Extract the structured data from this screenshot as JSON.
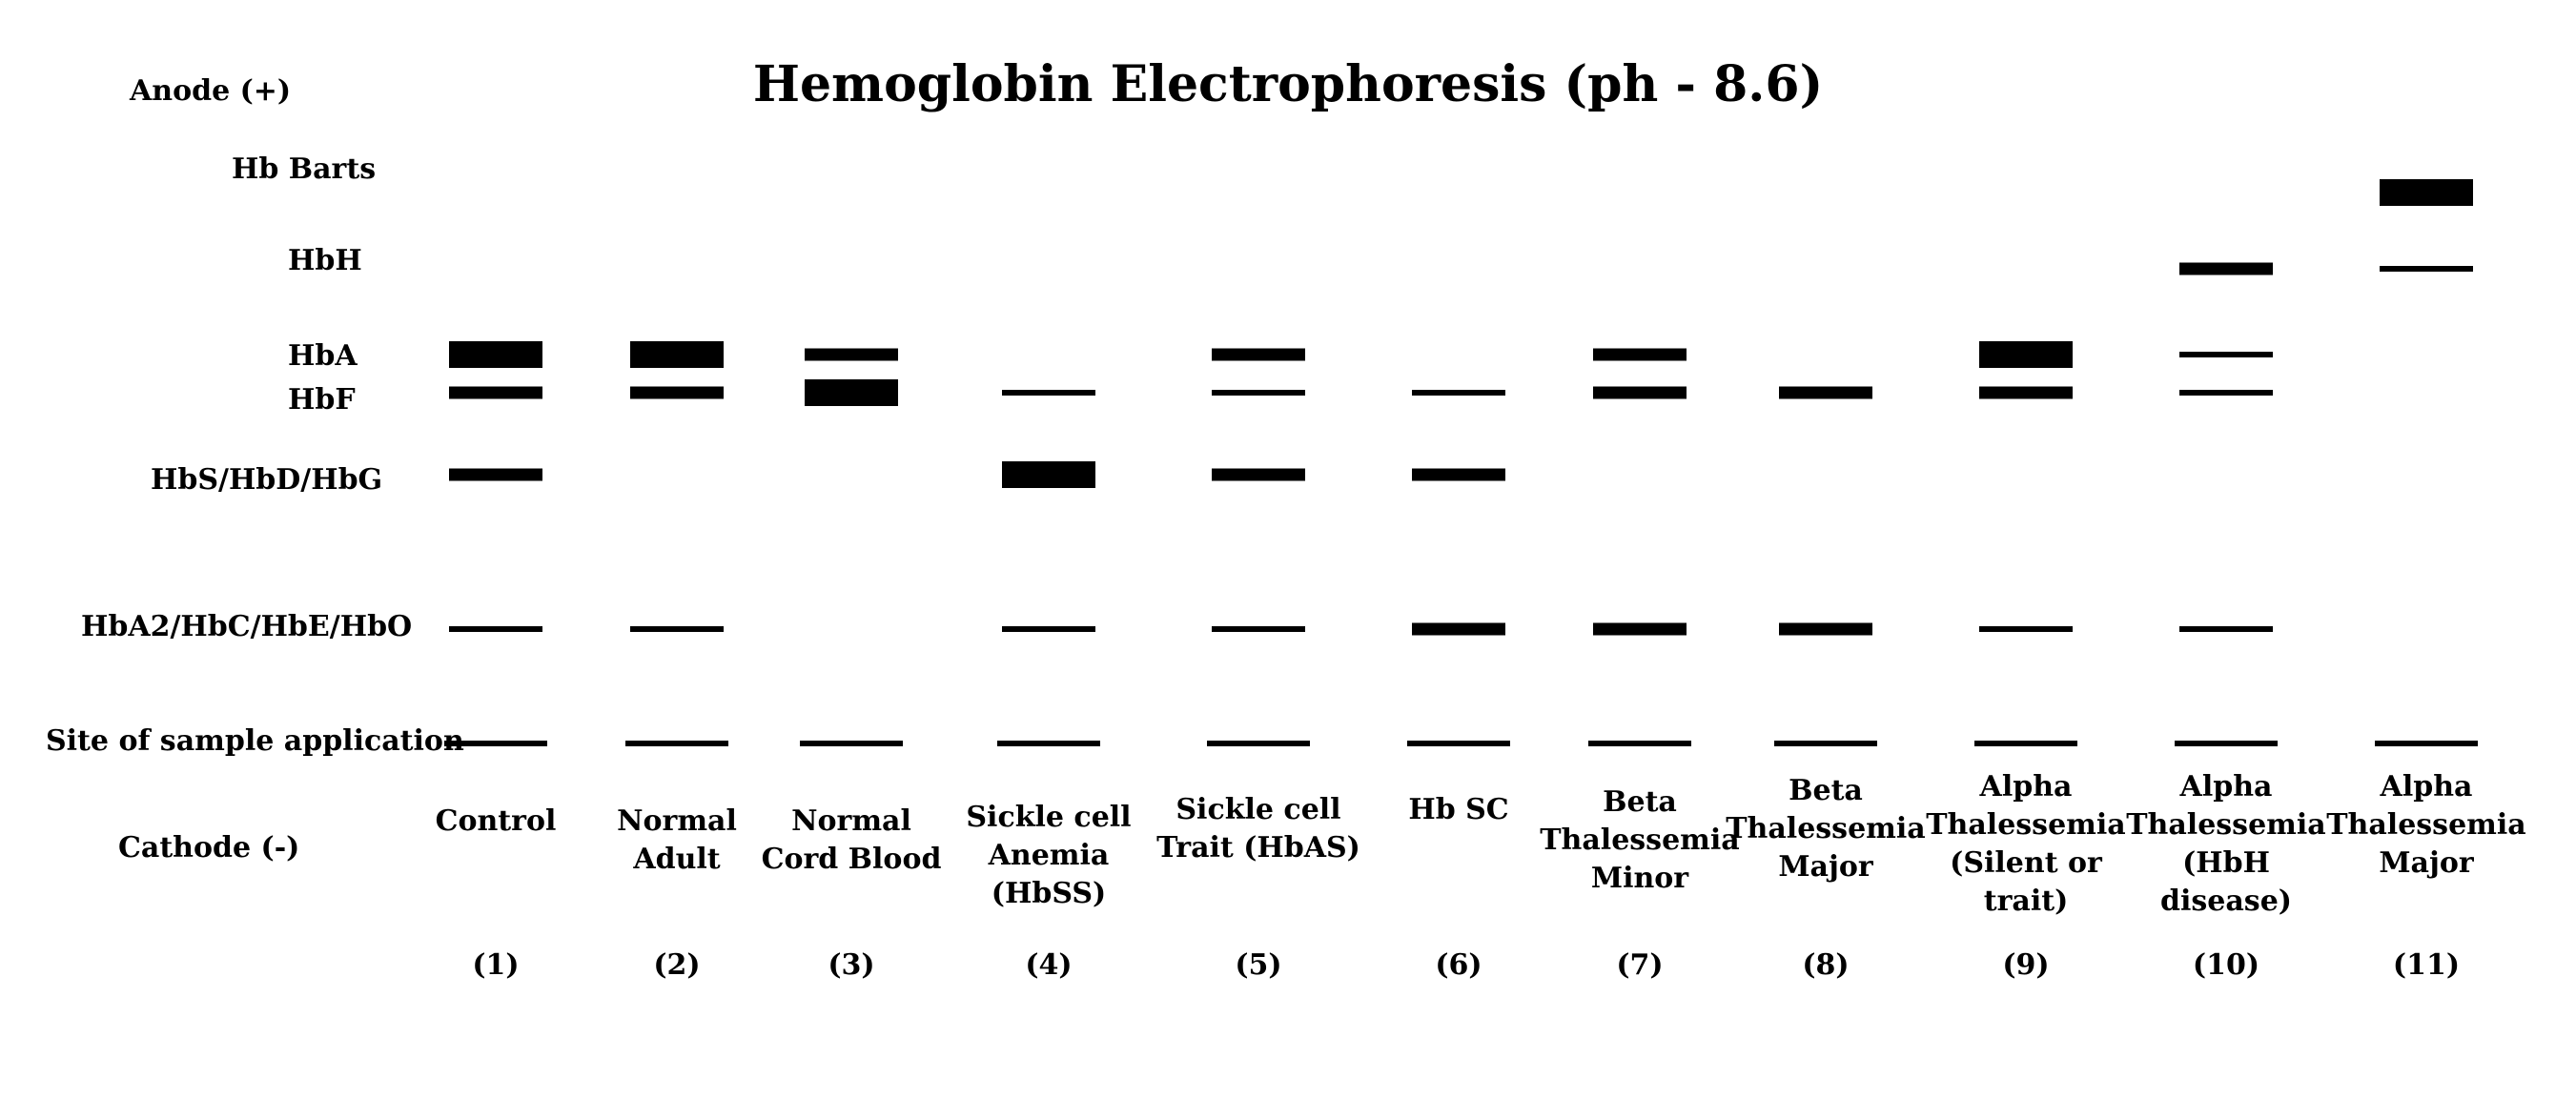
{
  "title": "Hemoglobin Electrophoresis (ph - 8.6)",
  "anode_label": "Anode (+)",
  "cathode_label": "Cathode (-)",
  "row_labels": {
    "hb_barts": "Hb Barts",
    "hbh": "HbH",
    "hba": "HbA",
    "hbf": "HbF",
    "hbs": "HbS/HbD/HbG",
    "hba2": "HbA2/HbC/HbE/HbO",
    "origin": "Site of sample application"
  },
  "lanes": [
    {
      "name_lines": [
        "Control"
      ],
      "number": "(1)",
      "bands": [
        {
          "row": "hba",
          "weight": "thick"
        },
        {
          "row": "hbf",
          "weight": "medium"
        },
        {
          "row": "hbs",
          "weight": "medium"
        },
        {
          "row": "hba2",
          "weight": "thin"
        },
        {
          "row": "origin",
          "weight": "thin"
        }
      ]
    },
    {
      "name_lines": [
        "Normal",
        "Adult"
      ],
      "number": "(2)",
      "bands": [
        {
          "row": "hba",
          "weight": "thick"
        },
        {
          "row": "hbf",
          "weight": "medium"
        },
        {
          "row": "hba2",
          "weight": "thin"
        },
        {
          "row": "origin",
          "weight": "thin"
        }
      ]
    },
    {
      "name_lines": [
        "Normal",
        "Cord Blood"
      ],
      "number": "(3)",
      "bands": [
        {
          "row": "hba",
          "weight": "medium"
        },
        {
          "row": "hbf",
          "weight": "thick"
        },
        {
          "row": "origin",
          "weight": "thin"
        }
      ]
    },
    {
      "name_lines": [
        "Sickle cell",
        "Anemia (HbSS)"
      ],
      "number": "(4)",
      "bands": [
        {
          "row": "hbf",
          "weight": "thin"
        },
        {
          "row": "hbs",
          "weight": "thick"
        },
        {
          "row": "hba2",
          "weight": "thin"
        },
        {
          "row": "origin",
          "weight": "thin"
        }
      ]
    },
    {
      "name_lines": [
        "Sickle cell",
        "Trait (HbAS)"
      ],
      "number": "(5)",
      "bands": [
        {
          "row": "hba",
          "weight": "medium"
        },
        {
          "row": "hbf",
          "weight": "thin"
        },
        {
          "row": "hbs",
          "weight": "medium"
        },
        {
          "row": "hba2",
          "weight": "thin"
        },
        {
          "row": "origin",
          "weight": "thin"
        }
      ]
    },
    {
      "name_lines": [
        "Hb SC"
      ],
      "number": "(6)",
      "bands": [
        {
          "row": "hbf",
          "weight": "thin"
        },
        {
          "row": "hbs",
          "weight": "medium"
        },
        {
          "row": "hba2",
          "weight": "medium"
        },
        {
          "row": "origin",
          "weight": "thin"
        }
      ]
    },
    {
      "name_lines": [
        "Beta",
        "Thalessemia",
        "Minor"
      ],
      "number": "(7)",
      "bands": [
        {
          "row": "hba",
          "weight": "medium"
        },
        {
          "row": "hbf",
          "weight": "medium"
        },
        {
          "row": "hba2",
          "weight": "medium"
        },
        {
          "row": "origin",
          "weight": "thin"
        }
      ]
    },
    {
      "name_lines": [
        "Beta",
        "Thalessemia",
        "Major"
      ],
      "number": "(8)",
      "bands": [
        {
          "row": "hbf",
          "weight": "medium"
        },
        {
          "row": "hba2",
          "weight": "medium"
        },
        {
          "row": "origin",
          "weight": "thin"
        }
      ]
    },
    {
      "name_lines": [
        "Alpha",
        "Thalessemia",
        "(Silent or trait)"
      ],
      "number": "(9)",
      "bands": [
        {
          "row": "hba",
          "weight": "thick"
        },
        {
          "row": "hbf",
          "weight": "medium"
        },
        {
          "row": "hba2",
          "weight": "thin"
        },
        {
          "row": "origin",
          "weight": "thin"
        }
      ]
    },
    {
      "name_lines": [
        "Alpha",
        "Thalessemia",
        "(HbH disease)"
      ],
      "number": "(10)",
      "bands": [
        {
          "row": "hbh",
          "weight": "medium"
        },
        {
          "row": "hba",
          "weight": "thin"
        },
        {
          "row": "hbf",
          "weight": "thin"
        },
        {
          "row": "hba2",
          "weight": "thin"
        },
        {
          "row": "origin",
          "weight": "thin"
        }
      ]
    },
    {
      "name_lines": [
        "Alpha",
        "Thalessemia",
        "Major"
      ],
      "number": "(11)",
      "bands": [
        {
          "row": "hb_barts",
          "weight": "thick"
        },
        {
          "row": "hbh",
          "weight": "thin"
        },
        {
          "row": "origin",
          "weight": "thin"
        }
      ]
    }
  ]
}
